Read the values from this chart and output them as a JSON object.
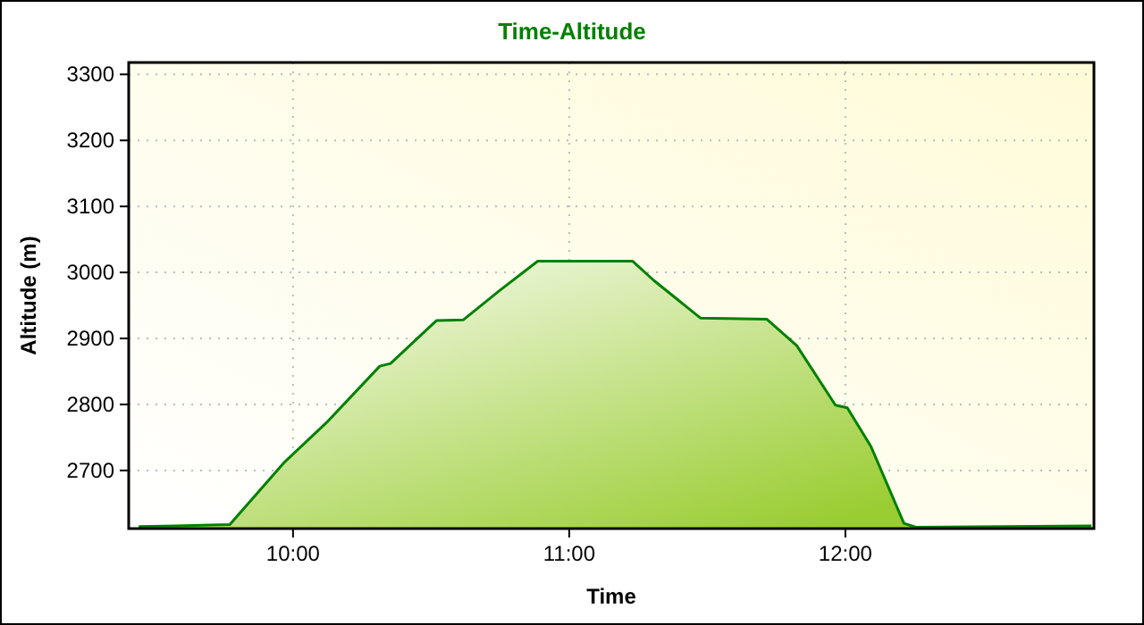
{
  "chart_data": {
    "type": "area",
    "title": "Time-Altitude",
    "xlabel": "Time",
    "ylabel": "Altitude (m)",
    "x": [
      9.441,
      9.577,
      9.771,
      9.97,
      10.12,
      10.314,
      10.353,
      10.519,
      10.616,
      10.746,
      10.886,
      11.23,
      11.306,
      11.475,
      11.716,
      11.824,
      11.964,
      12.007,
      12.093,
      12.212,
      12.255,
      12.891
    ],
    "series": [
      {
        "color": "#008000",
        "values": [
          2615,
          2616,
          2618,
          2713,
          2772,
          2858,
          2862,
          2927,
          2928,
          2972,
          3017,
          3017,
          2988,
          2931,
          2929,
          2889,
          2799,
          2795,
          2736,
          2620,
          2614,
          2616
        ]
      }
    ],
    "xlim": [
      9.405,
      12.9
    ],
    "xticks": [
      {
        "value": 10,
        "label": "10:00"
      },
      {
        "value": 11,
        "label": "11:00"
      },
      {
        "value": 12,
        "label": "12:00"
      }
    ],
    "ylim": [
      2612,
      3318
    ],
    "yticks": [
      2700,
      2800,
      2900,
      3000,
      3100,
      3200,
      3300
    ],
    "grid": true
  }
}
